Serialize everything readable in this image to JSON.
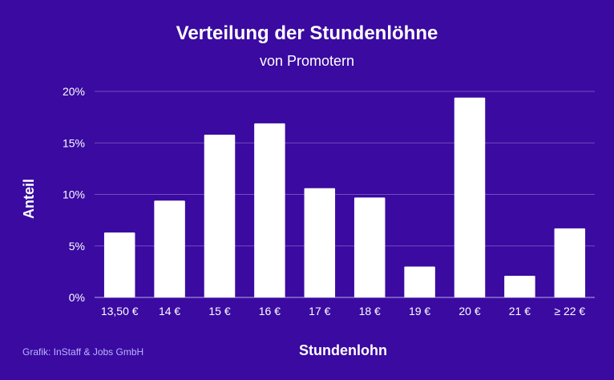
{
  "chart_data": {
    "type": "bar",
    "title": "Verteilung der Stundenlöhne",
    "subtitle": "von Promotern",
    "xlabel": "Stundenlohn",
    "ylabel": "Anteil",
    "categories": [
      "13,50 €",
      "14 €",
      "15 €",
      "16 €",
      "17 €",
      "18 €",
      "19 €",
      "20 €",
      "21 €",
      "≥ 22 €"
    ],
    "values": [
      6.3,
      9.4,
      15.8,
      16.9,
      10.6,
      9.7,
      3.0,
      19.4,
      2.1,
      6.7
    ],
    "ylim": [
      0,
      20
    ],
    "y_ticks": [
      0,
      5,
      10,
      15,
      20
    ],
    "y_tick_labels": [
      "0%",
      "5%",
      "10%",
      "15%",
      "20%"
    ],
    "grid": true,
    "legend": "none"
  },
  "footer": {
    "credit": "Grafik: InStaff & Jobs GmbH"
  },
  "colors": {
    "background": "#3a0aa1",
    "bars": "#ffffff",
    "text": "#ffffff",
    "credit": "#b9b4ff"
  }
}
